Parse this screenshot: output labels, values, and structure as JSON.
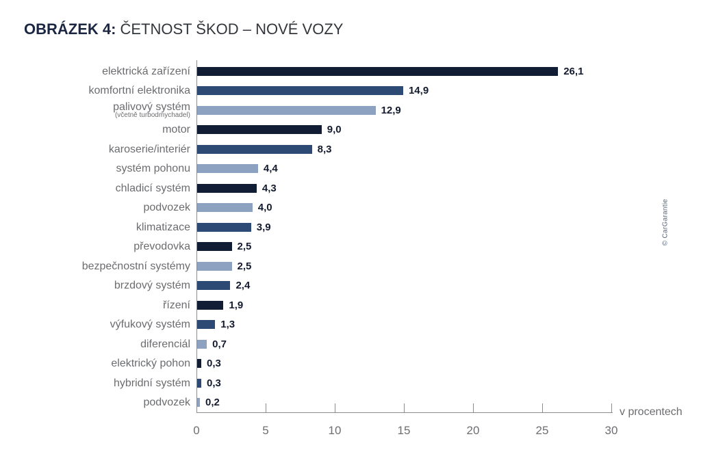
{
  "title": {
    "label": "OBRÁZEK 4:",
    "text": "ČETNOST ŠKOD – NOVÉ VOZY"
  },
  "credit": "© CarGarantie",
  "chart_data": {
    "type": "bar",
    "orientation": "horizontal",
    "title": "ČETNOST ŠKOD – NOVÉ VOZY",
    "xlabel": "v procentech",
    "xlim": [
      0,
      30
    ],
    "xticks": [
      0,
      5,
      10,
      15,
      20,
      25,
      30
    ],
    "xtick_labels": [
      "0",
      "5",
      "10",
      "15",
      "20",
      "25",
      "30"
    ],
    "grid": false,
    "legend": false,
    "categories": [
      "elektrická zařízení",
      "komfortní elektronika",
      "palivový systém",
      "motor",
      "karoserie/interiér",
      "systém pohonu",
      "chladicí systém",
      "podvozek",
      "klimatizace",
      "převodovka",
      "bezpečnostní systémy",
      "brzdový systém",
      "řízení",
      "výfukový systém",
      "diferenciál",
      "elektrický pohon",
      "hybridní systém",
      "podvozek"
    ],
    "sublabels": [
      "",
      "",
      "(včetně turbodmychadel)",
      "",
      "",
      "",
      "",
      "",
      "",
      "",
      "",
      "",
      "",
      "",
      "",
      "",
      "",
      ""
    ],
    "values": [
      26.1,
      14.9,
      12.9,
      9.0,
      8.3,
      4.4,
      4.3,
      4.0,
      3.9,
      2.5,
      2.5,
      2.4,
      1.9,
      1.3,
      0.7,
      0.3,
      0.3,
      0.2
    ],
    "value_labels": [
      "26,1",
      "14,9",
      "12,9",
      "9,0",
      "8,3",
      "4,4",
      "4,3",
      "4,0",
      "3,9",
      "2,5",
      "2,5",
      "2,4",
      "1,9",
      "1,3",
      "0,7",
      "0,3",
      "0,3",
      "0,2"
    ],
    "bar_color_keys": [
      "dark",
      "medium",
      "light",
      "dark",
      "medium",
      "light",
      "dark",
      "light",
      "medium",
      "dark",
      "light",
      "medium",
      "dark",
      "medium",
      "light",
      "dark",
      "medium",
      "light"
    ],
    "colors": {
      "dark": "#101d34",
      "medium": "#2d4a74",
      "light": "#8da2c1",
      "axis": "#8a8b8d",
      "label_text": "#6b6c6f",
      "value_text": "#141b2e"
    }
  }
}
